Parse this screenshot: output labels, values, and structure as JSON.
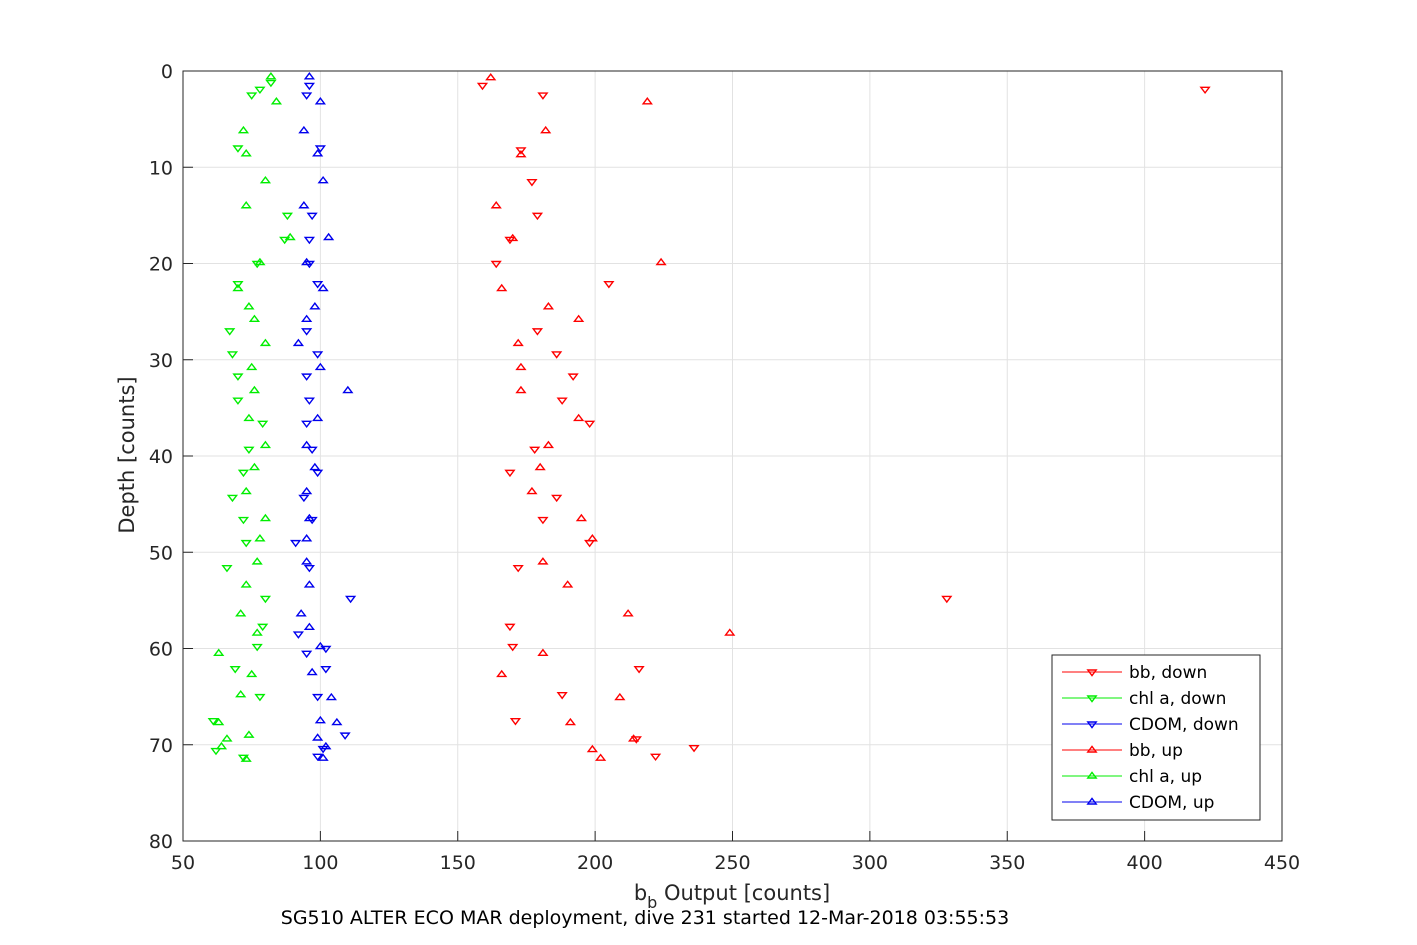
{
  "chart_data": {
    "type": "scatter",
    "title": "",
    "caption": "SG510 ALTER ECO MAR deployment, dive 231 started 12-Mar-2018 03:55:53",
    "xlabel_main": "b",
    "xlabel_sub": "b",
    "xlabel_rest": " Output [counts]",
    "ylabel": "Depth [counts]",
    "xlim": [
      50,
      450
    ],
    "ylim": [
      0,
      80
    ],
    "y_reversed": true,
    "grid": true,
    "legend_position": "bottom-right",
    "x_ticks": [
      50,
      100,
      150,
      200,
      250,
      300,
      350,
      400,
      450
    ],
    "y_ticks": [
      0,
      10,
      20,
      30,
      40,
      50,
      60,
      70,
      80
    ],
    "x_tick_labels": [
      "50",
      "100",
      "150",
      "200",
      "250",
      "300",
      "350",
      "400",
      "450"
    ],
    "y_tick_labels": [
      "0",
      "10",
      "20",
      "30",
      "40",
      "50",
      "60",
      "70",
      "80"
    ],
    "series": [
      {
        "name": "bb, down",
        "color": "#ff0000",
        "marker": "triangle-down",
        "points": [
          [
            422,
            1.9
          ],
          [
            159,
            1.5
          ],
          [
            181,
            2.5
          ],
          [
            173,
            8.2
          ],
          [
            177,
            11.5
          ],
          [
            179,
            15
          ],
          [
            169,
            17.5
          ],
          [
            164,
            20
          ],
          [
            205,
            22.1
          ],
          [
            179,
            27
          ],
          [
            186,
            29.4
          ],
          [
            192,
            31.7
          ],
          [
            188,
            34.2
          ],
          [
            198,
            36.6
          ],
          [
            178,
            39.3
          ],
          [
            169,
            41.7
          ],
          [
            186,
            44.3
          ],
          [
            181,
            46.6
          ],
          [
            198,
            49
          ],
          [
            172,
            51.6
          ],
          [
            328,
            54.8
          ],
          [
            169,
            57.7
          ],
          [
            170,
            59.8
          ],
          [
            216,
            62.1
          ],
          [
            188,
            64.8
          ],
          [
            171,
            67.5
          ],
          [
            215,
            69.4
          ],
          [
            236,
            70.3
          ],
          [
            222,
            71.2
          ]
        ]
      },
      {
        "name": "chl a, down",
        "color": "#00ee00",
        "marker": "triangle-down",
        "points": [
          [
            82,
            1.2
          ],
          [
            78,
            1.9
          ],
          [
            75,
            2.5
          ],
          [
            70,
            8
          ],
          [
            88,
            15
          ],
          [
            87,
            17.5
          ],
          [
            77,
            20
          ],
          [
            70,
            22.1
          ],
          [
            67,
            27
          ],
          [
            68,
            29.4
          ],
          [
            70,
            31.7
          ],
          [
            70,
            34.2
          ],
          [
            79,
            36.6
          ],
          [
            74,
            39.3
          ],
          [
            72,
            41.7
          ],
          [
            68,
            44.3
          ],
          [
            72,
            46.6
          ],
          [
            73,
            49
          ],
          [
            66,
            51.6
          ],
          [
            80,
            54.8
          ],
          [
            79,
            57.7
          ],
          [
            77,
            59.8
          ],
          [
            69,
            62.1
          ],
          [
            78,
            65
          ],
          [
            61,
            67.5
          ],
          [
            62,
            70.6
          ],
          [
            72,
            71.3
          ]
        ]
      },
      {
        "name": "CDOM, down",
        "color": "#0000ee",
        "marker": "triangle-down",
        "points": [
          [
            96,
            1.5
          ],
          [
            95,
            2.5
          ],
          [
            100,
            8
          ],
          [
            97,
            15
          ],
          [
            96,
            17.5
          ],
          [
            96,
            20
          ],
          [
            99,
            22.1
          ],
          [
            95,
            27
          ],
          [
            99,
            29.4
          ],
          [
            95,
            31.7
          ],
          [
            96,
            34.2
          ],
          [
            95,
            36.6
          ],
          [
            97,
            39.3
          ],
          [
            99,
            41.7
          ],
          [
            94,
            44.3
          ],
          [
            97,
            46.6
          ],
          [
            91,
            49
          ],
          [
            96,
            51.6
          ],
          [
            111,
            54.8
          ],
          [
            92,
            58.5
          ],
          [
            102,
            60
          ],
          [
            95,
            60.5
          ],
          [
            102,
            62.1
          ],
          [
            99,
            65
          ],
          [
            109,
            69
          ],
          [
            99,
            71.2
          ],
          [
            101,
            70.4
          ]
        ]
      },
      {
        "name": "bb, up",
        "color": "#ff0000",
        "marker": "triangle-up",
        "points": [
          [
            162,
            0.7
          ],
          [
            219,
            3.2
          ],
          [
            182,
            6.2
          ],
          [
            173,
            8.7
          ],
          [
            164,
            14
          ],
          [
            170,
            17.4
          ],
          [
            224,
            19.9
          ],
          [
            166,
            22.6
          ],
          [
            183,
            24.5
          ],
          [
            194,
            25.8
          ],
          [
            172,
            28.3
          ],
          [
            173,
            30.8
          ],
          [
            173,
            33.2
          ],
          [
            194,
            36.1
          ],
          [
            183,
            38.9
          ],
          [
            180,
            41.2
          ],
          [
            177,
            43.7
          ],
          [
            195,
            46.5
          ],
          [
            199,
            48.6
          ],
          [
            181,
            51
          ],
          [
            190,
            53.4
          ],
          [
            212,
            56.4
          ],
          [
            181,
            60.5
          ],
          [
            249,
            58.4
          ],
          [
            166,
            62.7
          ],
          [
            209,
            65.1
          ],
          [
            191,
            67.7
          ],
          [
            214,
            69.4
          ],
          [
            199,
            70.5
          ],
          [
            202,
            71.4
          ]
        ]
      },
      {
        "name": "chl a, up",
        "color": "#00ee00",
        "marker": "triangle-up",
        "points": [
          [
            82,
            0.6
          ],
          [
            84,
            3.2
          ],
          [
            72,
            6.2
          ],
          [
            73,
            8.6
          ],
          [
            80,
            11.4
          ],
          [
            73,
            14
          ],
          [
            89,
            17.3
          ],
          [
            78,
            19.9
          ],
          [
            70,
            22.6
          ],
          [
            74,
            24.5
          ],
          [
            76,
            25.8
          ],
          [
            80,
            28.3
          ],
          [
            75,
            30.8
          ],
          [
            76,
            33.2
          ],
          [
            74,
            36.1
          ],
          [
            80,
            38.9
          ],
          [
            76,
            41.2
          ],
          [
            73,
            43.7
          ],
          [
            80,
            46.5
          ],
          [
            78,
            48.6
          ],
          [
            77,
            51
          ],
          [
            73,
            53.4
          ],
          [
            71,
            56.4
          ],
          [
            77,
            58.4
          ],
          [
            63,
            60.5
          ],
          [
            75,
            62.7
          ],
          [
            71,
            64.8
          ],
          [
            74,
            69
          ],
          [
            66,
            69.4
          ],
          [
            64,
            70.2
          ],
          [
            73,
            71.5
          ],
          [
            63,
            67.7
          ]
        ]
      },
      {
        "name": "CDOM, up",
        "color": "#0000ee",
        "marker": "triangle-up",
        "points": [
          [
            96,
            0.6
          ],
          [
            100,
            3.2
          ],
          [
            94,
            6.2
          ],
          [
            99,
            8.6
          ],
          [
            101,
            11.4
          ],
          [
            94,
            14
          ],
          [
            103,
            17.3
          ],
          [
            95,
            19.9
          ],
          [
            101,
            22.6
          ],
          [
            98,
            24.5
          ],
          [
            95,
            25.8
          ],
          [
            92,
            28.3
          ],
          [
            100,
            30.8
          ],
          [
            110,
            33.2
          ],
          [
            99,
            36.1
          ],
          [
            95,
            38.9
          ],
          [
            98,
            41.2
          ],
          [
            95,
            43.7
          ],
          [
            96,
            46.5
          ],
          [
            95,
            48.6
          ],
          [
            95,
            51
          ],
          [
            96,
            53.4
          ],
          [
            93,
            56.4
          ],
          [
            96,
            57.8
          ],
          [
            100,
            59.8
          ],
          [
            97,
            62.5
          ],
          [
            104,
            65.1
          ],
          [
            100,
            67.5
          ],
          [
            106,
            67.7
          ],
          [
            99,
            69.3
          ],
          [
            102,
            70.2
          ],
          [
            101,
            71.4
          ]
        ]
      }
    ]
  }
}
